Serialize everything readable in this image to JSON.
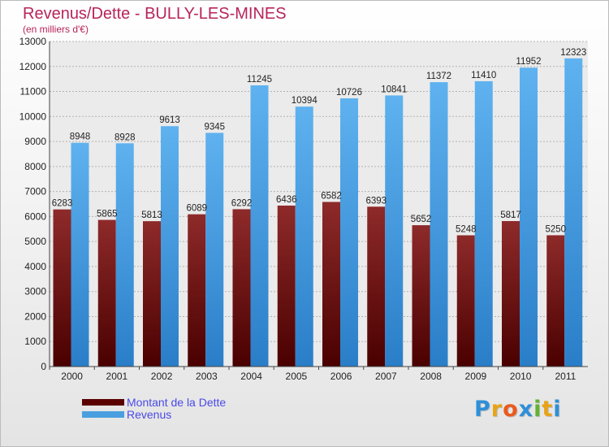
{
  "chart_data": {
    "type": "bar",
    "title": "Revenus/Dette - BULLY-LES-MINES",
    "subtitle": "(en milliers d'€)",
    "categories": [
      "2000",
      "2001",
      "2002",
      "2003",
      "2004",
      "2005",
      "2006",
      "2007",
      "2008",
      "2009",
      "2010",
      "2011"
    ],
    "series": [
      {
        "name": "Montant de la Dette",
        "color": "#7a1a1a",
        "values": [
          6283,
          5865,
          5813,
          6089,
          6292,
          6436,
          6582,
          6393,
          5652,
          5248,
          5817,
          5250
        ]
      },
      {
        "name": "Revenus",
        "color": "#4a9fe0",
        "values": [
          8948,
          8928,
          9613,
          9345,
          11245,
          10394,
          10726,
          10841,
          11372,
          11410,
          11952,
          12323
        ]
      }
    ],
    "ylim": [
      0,
      13000
    ],
    "yticks": [
      0,
      1000,
      2000,
      3000,
      4000,
      5000,
      6000,
      7000,
      8000,
      9000,
      10000,
      11000,
      12000,
      13000
    ],
    "grid": true,
    "legend_placement": "bottom-left"
  },
  "logo": {
    "letters": [
      "P",
      "r",
      "o",
      "x",
      "i",
      "t",
      "i"
    ],
    "colors": [
      "#2e8fd8",
      "#e8a317",
      "#ea5a1d",
      "#2e8fd8",
      "#62b32e",
      "#e8a317",
      "#2e8fd8"
    ]
  }
}
